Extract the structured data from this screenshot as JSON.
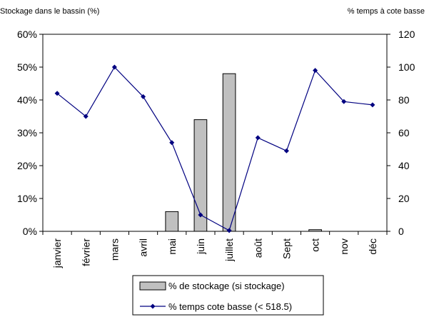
{
  "chart_data": {
    "type": "bar+line",
    "y_left_label": "Stockage dans le bassin (%)",
    "y_right_label": "% temps à cote basse",
    "categories": [
      "janvier",
      "février",
      "mars",
      "avril",
      "mai",
      "juin",
      "juillet",
      "août",
      "Sept",
      "oct",
      "nov",
      "déc"
    ],
    "y_left_ticks": [
      "0%",
      "10%",
      "20%",
      "30%",
      "40%",
      "50%",
      "60%"
    ],
    "y_right_ticks": [
      "0",
      "20",
      "40",
      "60",
      "80",
      "100",
      "120"
    ],
    "y_left_lim": [
      0,
      60
    ],
    "y_right_lim": [
      0,
      120
    ],
    "bar_series": {
      "name": "% de stockage (si stockage)",
      "axis": "left",
      "color": "#c0c0c0",
      "values": [
        0,
        0,
        0,
        0,
        6,
        34,
        48,
        0,
        0,
        0.5,
        0,
        0
      ]
    },
    "line_series": {
      "name": "% temps cote basse (< 518.5)",
      "axis": "right",
      "color": "#000080",
      "values": [
        84,
        70,
        100,
        82,
        54,
        10,
        0.5,
        57,
        49,
        98,
        79,
        77
      ]
    },
    "legend_position": "bottom",
    "grid": false
  }
}
